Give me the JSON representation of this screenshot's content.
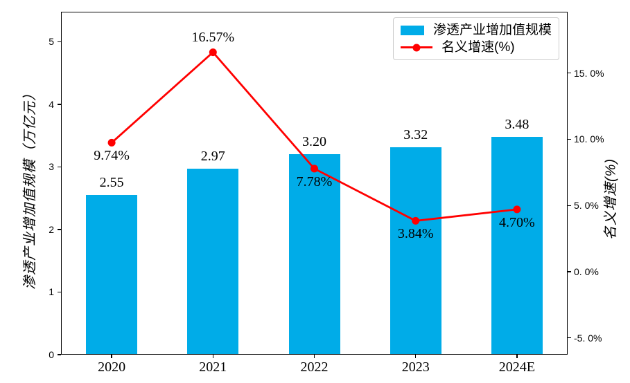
{
  "chart_data": {
    "type": "bar+line",
    "background": "#FFFFFF",
    "grid": false,
    "categories": [
      "2020",
      "2021",
      "2022",
      "2023",
      "2024E"
    ],
    "series": [
      {
        "name": "渗透产业增加值规模",
        "type": "bar",
        "axis": "left",
        "color": "#00ACE8",
        "values": [
          2.55,
          2.97,
          3.2,
          3.32,
          3.48
        ],
        "value_labels": [
          "2.55",
          "2.97",
          "3.20",
          "3.32",
          "3.48"
        ]
      },
      {
        "name": "名义增速(%)",
        "type": "line",
        "axis": "right",
        "color": "#FF0000",
        "values": [
          9.74,
          16.57,
          7.78,
          3.84,
          4.7
        ],
        "value_labels": [
          "9.74%",
          "16.57%",
          "7.78%",
          "3.84%",
          "4.70%"
        ],
        "label_side": [
          "below",
          "above",
          "below",
          "below",
          "below"
        ]
      }
    ],
    "x_axis": {
      "tick_labels": [
        "2020",
        "2021",
        "2022",
        "2023",
        "2024E"
      ]
    },
    "left_axis": {
      "title": "渗透产业增加值规模（万亿元）",
      "tick_values": [
        0,
        1,
        2,
        3,
        4,
        5
      ],
      "tick_labels": [
        "0",
        "1",
        "2",
        "3",
        "4",
        "5"
      ],
      "range": [
        0,
        5.48
      ]
    },
    "right_axis": {
      "title": "名义增速(%)",
      "tick_values": [
        15,
        10,
        5,
        0,
        -5
      ],
      "tick_labels": [
        "15. 0%",
        "10. 0%",
        "5. 0%",
        "0. 0%",
        "-5. 0%"
      ],
      "range": [
        -6.27,
        19.63
      ]
    },
    "legend": {
      "position": "top-right",
      "items": [
        {
          "label": "渗透产业增加值规模",
          "swatch": "bar"
        },
        {
          "label": "名义增速(%)",
          "swatch": "line"
        }
      ]
    }
  }
}
